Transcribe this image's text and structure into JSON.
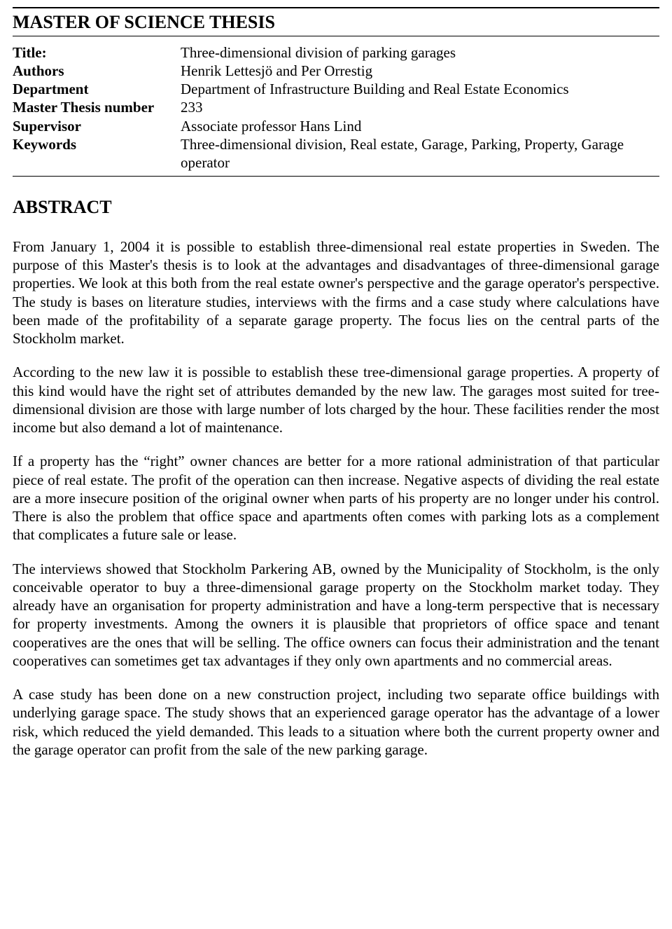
{
  "header": {
    "title": "MASTER OF SCIENCE THESIS"
  },
  "meta": {
    "rows": [
      {
        "label": "Title:",
        "value": "Three-dimensional division of parking garages"
      },
      {
        "label": "Authors",
        "value": "Henrik Lettesjö and Per Orrestig"
      },
      {
        "label": "Department",
        "value": "Department of Infrastructure Building and Real Estate Economics"
      },
      {
        "label": "Master Thesis number",
        "value": "233"
      },
      {
        "label": "Supervisor",
        "value": "Associate professor Hans Lind"
      },
      {
        "label": "Keywords",
        "value": "Three-dimensional division, Real estate, Garage, Parking, Property, Garage operator"
      }
    ]
  },
  "abstract": {
    "heading": "ABSTRACT",
    "paragraphs": [
      "From January 1, 2004 it is possible to establish three-dimensional real estate properties in Sweden. The purpose of this Master's thesis is to look at the advantages and disadvantages of three-dimensional garage properties. We look at this both from the real estate owner's perspective and the garage operator's perspective. The study is bases on literature studies, interviews with the firms and a case study where calculations have been made of the profitability of a separate garage property. The focus lies on the central parts of the Stockholm market.",
      "According to the new law it is possible to establish these tree-dimensional garage properties. A property of this kind would have the right set of attributes demanded by the new law. The garages most suited for tree-dimensional division are those with large number of lots charged by the hour. These facilities render the most income but also demand a lot of maintenance.",
      "If a property has the “right” owner chances are better for a more rational administration of that particular piece of real estate. The profit of the operation can then increase. Negative aspects of dividing the real estate are a more insecure position of the original owner when parts of his property are no longer under his control. There is also the problem that office space and apartments often comes with parking lots as a complement that complicates a future sale or lease.",
      "The interviews showed that Stockholm Parkering AB, owned by the Municipality of Stockholm, is the only conceivable operator to buy a three-dimensional garage property on the Stockholm market today. They already have an organisation for property administration and have a long-term perspective that is necessary for property investments. Among the owners it is plausible that proprietors of office space and tenant cooperatives are the ones that will be selling. The office owners can focus their administration and the tenant cooperatives can sometimes get tax advantages if they only own apartments and no commercial areas.",
      "A case study has been done on a new construction project, including two separate office buildings with underlying garage space. The study shows that an experienced garage operator has the advantage of a lower risk, which reduced the yield demanded. This leads to a situation where both the current property owner and the garage operator can profit from the sale of the new parking garage."
    ]
  }
}
